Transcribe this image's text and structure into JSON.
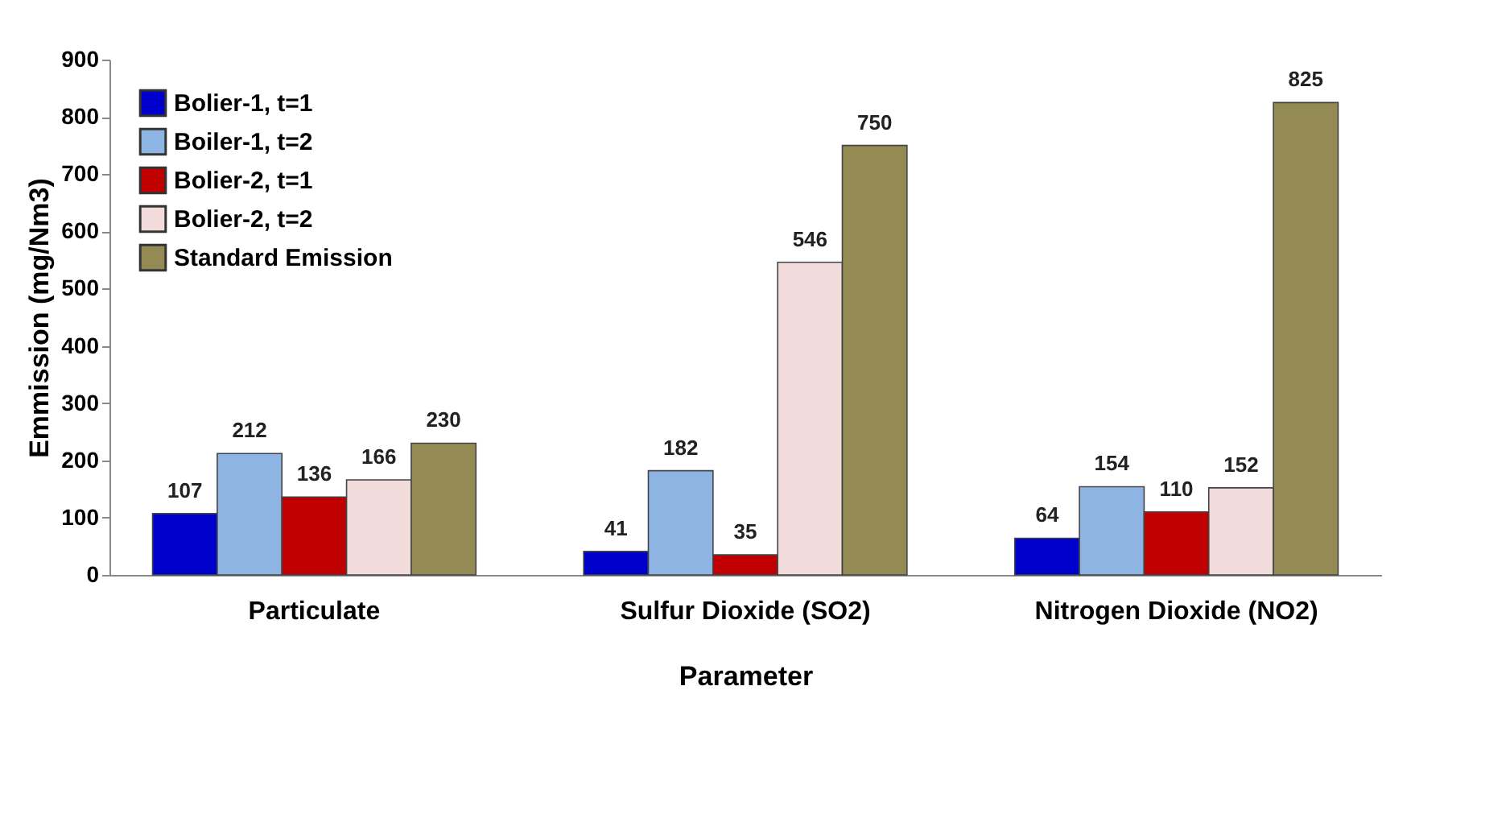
{
  "chart_data": {
    "type": "bar",
    "xlabel": "Parameter",
    "ylabel": "Emmission (mg/Nm3)",
    "categories": [
      "Particulate",
      "Sulfur Dioxide (SO2)",
      "Nitrogen Dioxide (NO2)"
    ],
    "series": [
      {
        "name": "Bolier-1, t=1",
        "color": "#0000cc",
        "values": [
          107,
          41,
          64
        ]
      },
      {
        "name": "Boiler-1, t=2",
        "color": "#8db4e2",
        "values": [
          212,
          182,
          154
        ]
      },
      {
        "name": "Bolier-2, t=1",
        "color": "#c00000",
        "values": [
          136,
          35,
          110
        ]
      },
      {
        "name": "Bolier-2, t=2",
        "color": "#f2dcdb",
        "values": [
          166,
          546,
          152
        ]
      },
      {
        "name": "Standard Emission",
        "color": "#948a54",
        "values": [
          230,
          750,
          825
        ]
      }
    ],
    "ylim": [
      0,
      900
    ],
    "yticks": [
      0,
      100,
      200,
      300,
      400,
      500,
      600,
      700,
      800,
      900
    ],
    "grid": false,
    "legend": "top left",
    "data_labels": true
  }
}
